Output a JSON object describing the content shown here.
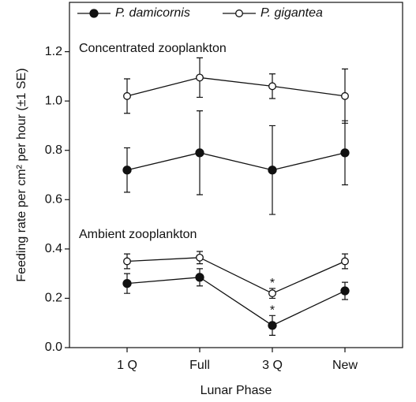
{
  "chart_data": {
    "type": "line",
    "xlabel": "Lunar Phase",
    "ylabel": "Feeding rate per cm² per hour (±1 SE)",
    "categories": [
      "1 Q",
      "Full",
      "3 Q",
      "New"
    ],
    "ylim": [
      0,
      1.4
    ],
    "yticks": [
      {
        "value": 0,
        "label": "0.0"
      },
      0.2,
      0.4,
      0.6,
      0.8,
      {
        "value": 1,
        "label": "1.0"
      },
      1.2
    ],
    "condition_labels": [
      "Concentrated zooplankton",
      "Ambient zooplankton"
    ],
    "legend": "top",
    "series": [
      {
        "name": "P. damicornis",
        "color": "#111111",
        "marker": "filled",
        "conditions": [
          {
            "values": [
              0.72,
              0.79,
              0.72,
              0.79
            ],
            "errors": [
              0.09,
              0.17,
              0.18,
              0.13
            ]
          },
          {
            "values": [
              0.26,
              0.285,
              0.09,
              0.23
            ],
            "errors": [
              0.04,
              0.035,
              0.04,
              0.035
            ]
          }
        ]
      },
      {
        "name": "P. gigantea",
        "color": "#111111",
        "marker": "open",
        "conditions": [
          {
            "values": [
              1.02,
              1.095,
              1.06,
              1.02
            ],
            "errors": [
              0.07,
              0.08,
              0.05,
              0.11
            ]
          },
          {
            "values": [
              0.35,
              0.365,
              0.22,
              0.35
            ],
            "errors": [
              0.03,
              0.025,
              0.02,
              0.03
            ]
          }
        ]
      }
    ],
    "annotations": [
      {
        "text": "*",
        "series": 1,
        "condition": 1,
        "category": 2
      },
      {
        "text": "*",
        "series": 0,
        "condition": 1,
        "category": 2
      }
    ]
  }
}
